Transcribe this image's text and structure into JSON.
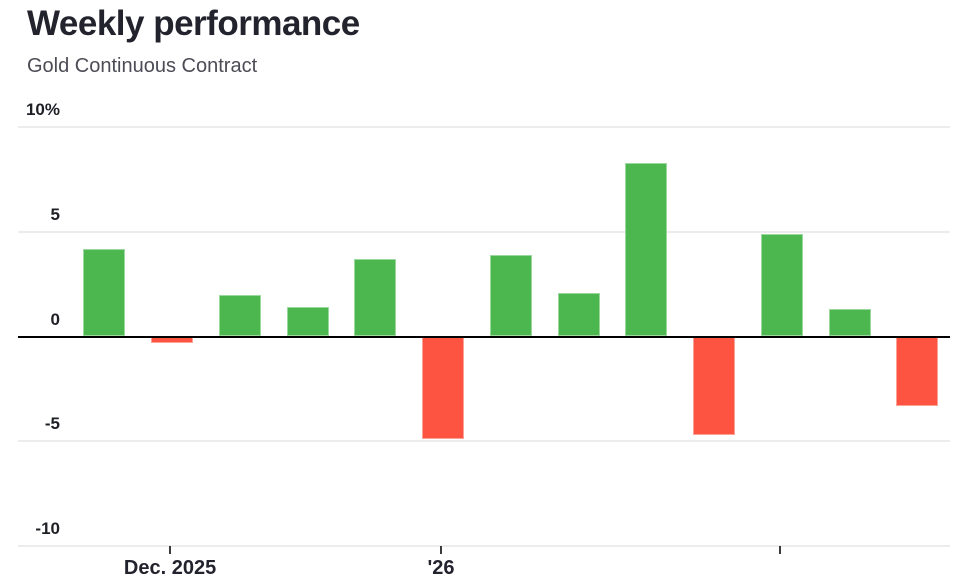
{
  "header": {
    "title": "Weekly performance",
    "subtitle": "Gold Continuous Contract"
  },
  "chart_data": {
    "type": "bar",
    "title": "Weekly performance",
    "subtitle": "Gold Continuous Contract",
    "unit": "%",
    "values": [
      4.2,
      -0.3,
      2.0,
      1.4,
      3.7,
      -4.9,
      3.9,
      2.1,
      8.3,
      -4.7,
      4.9,
      1.3,
      -3.3
    ],
    "ylim": [
      -10,
      10
    ],
    "y_ticks": [
      {
        "value": 10,
        "label": "10%"
      },
      {
        "value": 5,
        "label": "5"
      },
      {
        "value": 0,
        "label": "0"
      },
      {
        "value": -5,
        "label": "-5"
      },
      {
        "value": -10,
        "label": "-10"
      }
    ],
    "x_ticks": [
      {
        "bar_index": 1,
        "label": "Dec. 2025"
      },
      {
        "bar_index": 5,
        "label": "'26"
      },
      {
        "bar_index": 10,
        "label": ""
      }
    ],
    "grid": "horizontal",
    "legend": "none",
    "zero_line": true,
    "colors": {
      "positive": "#4bb74e",
      "negative": "#fc5440",
      "grid": "#ececec",
      "zero_line": "#000000",
      "title_text": "#23232e",
      "subtitle_text": "#4c4c56",
      "axis_text": "#1e2026"
    }
  }
}
